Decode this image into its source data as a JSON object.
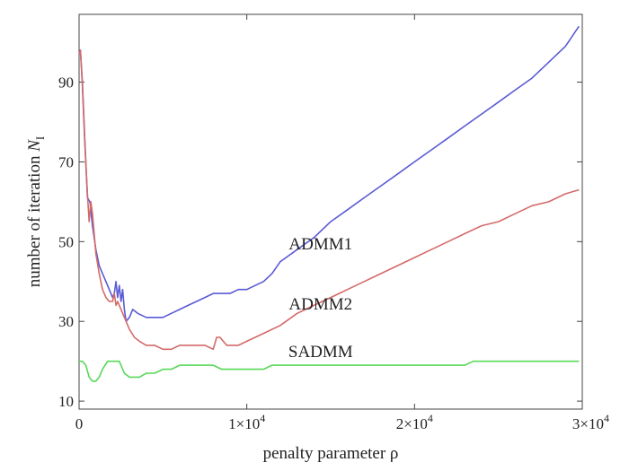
{
  "chart_data": {
    "type": "line",
    "xlabel": "penalty parameter ρ",
    "ylabel": "number of iteration N_I",
    "ylabel_main": "number of iteration ",
    "ylabel_var": "N",
    "ylabel_sub": "I",
    "xlim": [
      0,
      30000
    ],
    "ylim": [
      8,
      107
    ],
    "x_ticks": [
      {
        "value": 0,
        "mant": "0",
        "exp": ""
      },
      {
        "value": 10000,
        "mant": "1×10",
        "exp": "4"
      },
      {
        "value": 20000,
        "mant": "2×10",
        "exp": "4"
      },
      {
        "value": 30000,
        "mant": "3×10",
        "exp": "4"
      }
    ],
    "y_ticks": [
      {
        "value": 10,
        "label": "10"
      },
      {
        "value": 30,
        "label": "30"
      },
      {
        "value": 50,
        "label": "50"
      },
      {
        "value": 70,
        "label": "70"
      },
      {
        "value": 90,
        "label": "90"
      }
    ],
    "grid": false,
    "series": [
      {
        "name": "ADMM1",
        "color": "#5a5ad6",
        "label_at": [
          14400,
          48
        ],
        "x": [
          0,
          80,
          200,
          350,
          500,
          650,
          800,
          1000,
          1200,
          1400,
          1600,
          1800,
          2000,
          2100,
          2200,
          2300,
          2400,
          2500,
          2600,
          2700,
          2800,
          3000,
          3200,
          3500,
          4000,
          4500,
          5000,
          5500,
          6000,
          6500,
          7000,
          7500,
          8000,
          8500,
          9000,
          9500,
          10000,
          10500,
          11000,
          11500,
          12000,
          13000,
          14000,
          15000,
          16000,
          17000,
          18000,
          19000,
          20000,
          21000,
          22000,
          23000,
          24000,
          25000,
          26000,
          27000,
          28000,
          29000,
          29800
        ],
        "y": [
          97,
          98,
          90,
          75,
          61,
          60,
          54,
          48,
          44,
          42,
          40,
          38,
          36,
          37,
          40,
          36,
          39,
          35,
          38,
          33,
          30,
          31,
          33,
          32,
          31,
          31,
          31,
          32,
          33,
          34,
          35,
          36,
          37,
          37,
          37,
          38,
          38,
          39,
          40,
          42,
          45,
          48,
          51,
          55,
          58,
          61,
          64,
          67,
          70,
          73,
          76,
          79,
          82,
          85,
          88,
          91,
          95,
          99,
          104
        ]
      },
      {
        "name": "ADMM2",
        "color": "#d46a6a",
        "label_at": [
          14400,
          33
        ],
        "x": [
          0,
          80,
          200,
          350,
          500,
          600,
          700,
          800,
          1000,
          1200,
          1400,
          1600,
          1800,
          2000,
          2100,
          2200,
          2300,
          2500,
          2800,
          3000,
          3300,
          3600,
          4000,
          4500,
          5000,
          5500,
          6000,
          6500,
          7000,
          7500,
          8000,
          8200,
          8400,
          8600,
          8800,
          9000,
          9500,
          10000,
          11000,
          12000,
          13000,
          14000,
          15000,
          16000,
          17000,
          18000,
          19000,
          20000,
          21000,
          22000,
          23000,
          24000,
          25000,
          26000,
          27000,
          28000,
          29000,
          29800
        ],
        "y": [
          97,
          98,
          89,
          74,
          62,
          55,
          60,
          57,
          47,
          42,
          38,
          36,
          35,
          35,
          37,
          34,
          35,
          33,
          30,
          28,
          26,
          25,
          24,
          24,
          23,
          23,
          24,
          24,
          24,
          24,
          23,
          26,
          26,
          25,
          24,
          24,
          24,
          25,
          27,
          29,
          32,
          34,
          36,
          38,
          40,
          42,
          44,
          46,
          48,
          50,
          52,
          54,
          55,
          57,
          59,
          60,
          62,
          63
        ]
      },
      {
        "name": "SADMM",
        "color": "#58d858",
        "label_at": [
          14400,
          21
        ],
        "x": [
          0,
          200,
          400,
          600,
          800,
          1000,
          1200,
          1400,
          1700,
          2000,
          2400,
          2700,
          3000,
          3300,
          3600,
          4000,
          4500,
          5000,
          5500,
          6000,
          6500,
          7000,
          7500,
          8000,
          8500,
          9000,
          9500,
          10000,
          10500,
          11000,
          11500,
          12000,
          13000,
          14000,
          15000,
          16000,
          17000,
          18000,
          19000,
          20000,
          21000,
          22000,
          23000,
          23500,
          24000,
          25000,
          26000,
          27000,
          28000,
          29000,
          29800
        ],
        "y": [
          20,
          20,
          19,
          16,
          15,
          15,
          16,
          18,
          20,
          20,
          20,
          17,
          16,
          16,
          16,
          17,
          17,
          18,
          18,
          19,
          19,
          19,
          19,
          19,
          18,
          18,
          18,
          18,
          18,
          18,
          19,
          19,
          19,
          19,
          19,
          19,
          19,
          19,
          19,
          19,
          19,
          19,
          19,
          20,
          20,
          20,
          20,
          20,
          20,
          20,
          20
        ]
      }
    ]
  }
}
